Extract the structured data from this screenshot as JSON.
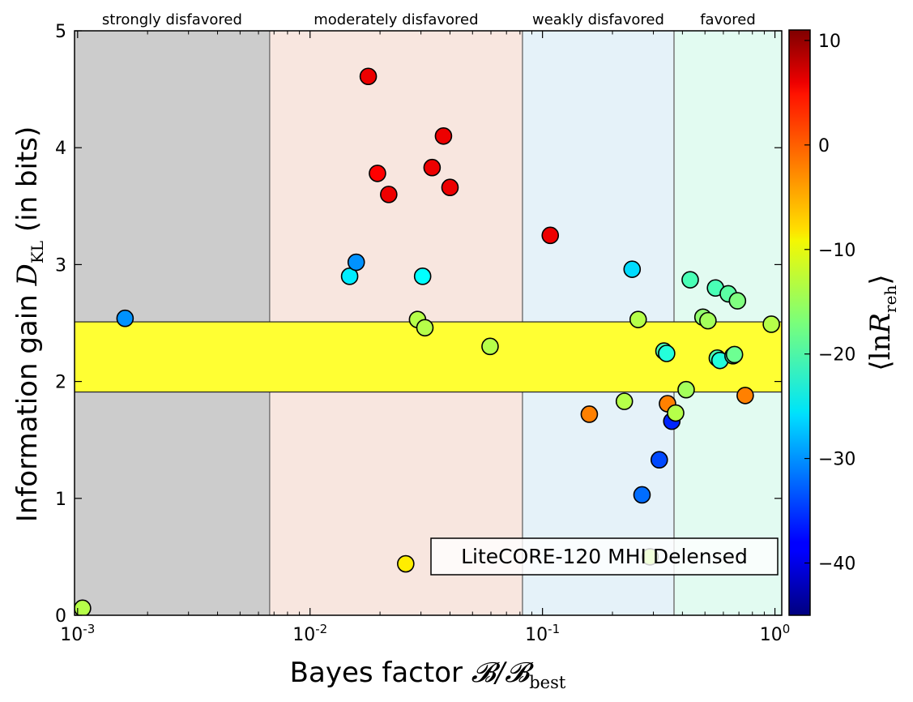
{
  "chart_data": {
    "type": "scatter",
    "xscale": "log",
    "xlim": [
      0.00097,
      1.07
    ],
    "ylim": [
      0,
      5
    ],
    "xlabel": {
      "prefix": "Bayes factor ",
      "math": "𝓑/𝓑",
      "sub": "best"
    },
    "ylabel": {
      "prefix": "Information gain ",
      "math": "D",
      "sub": "KL",
      "suffix": "  (in bits)"
    },
    "x_ticks": [
      {
        "value": 0.001,
        "base": "10",
        "exp": "-3"
      },
      {
        "value": 0.01,
        "base": "10",
        "exp": "-2"
      },
      {
        "value": 0.1,
        "base": "10",
        "exp": "-1"
      },
      {
        "value": 1,
        "base": "10",
        "exp": "0"
      }
    ],
    "y_ticks": [
      "0",
      "1",
      "2",
      "3",
      "4",
      "5"
    ],
    "regions": [
      {
        "label": "strongly disfavored",
        "from": 0.00097,
        "to": 0.0067,
        "color": "#cccccc"
      },
      {
        "label": "moderately disfavored",
        "from": 0.0067,
        "to": 0.082,
        "color": "#f8e6df"
      },
      {
        "label": "weakly disfavored",
        "from": 0.082,
        "to": 0.368,
        "color": "#e5f2f9"
      },
      {
        "label": "favored",
        "from": 0.368,
        "to": 1.07,
        "color": "#e2fbf1"
      }
    ],
    "band": {
      "y_from": 1.91,
      "y_to": 2.51,
      "color": "#ffff33"
    },
    "annotation": "LiteCORE-120 MHI Delensed",
    "colorbar": {
      "label": {
        "open": "⟨",
        "math": "ln",
        "var": "R",
        "sub": "reh",
        "close": "⟩"
      },
      "range": [
        -45,
        11
      ],
      "ticks": [
        "10",
        "0",
        "−10",
        "−20",
        "−30",
        "−40"
      ],
      "tick_values": [
        10,
        0,
        -10,
        -20,
        -30,
        -40
      ],
      "colormap": "jet"
    },
    "points": [
      {
        "x": 0.00105,
        "y": 0.06,
        "c": -14
      },
      {
        "x": 0.0016,
        "y": 2.54,
        "c": -30
      },
      {
        "x": 0.0178,
        "y": 4.61,
        "c": 5
      },
      {
        "x": 0.0195,
        "y": 3.78,
        "c": 4
      },
      {
        "x": 0.0218,
        "y": 3.6,
        "c": 5
      },
      {
        "x": 0.0335,
        "y": 3.83,
        "c": 5
      },
      {
        "x": 0.0375,
        "y": 4.1,
        "c": 5
      },
      {
        "x": 0.04,
        "y": 3.66,
        "c": 5
      },
      {
        "x": 0.0148,
        "y": 2.9,
        "c": -25
      },
      {
        "x": 0.0158,
        "y": 3.02,
        "c": -30
      },
      {
        "x": 0.0305,
        "y": 2.9,
        "c": -24
      },
      {
        "x": 0.029,
        "y": 2.53,
        "c": -14
      },
      {
        "x": 0.0312,
        "y": 2.46,
        "c": -14
      },
      {
        "x": 0.0258,
        "y": 0.44,
        "c": -9
      },
      {
        "x": 0.0595,
        "y": 2.3,
        "c": -14
      },
      {
        "x": 0.108,
        "y": 3.25,
        "c": 5
      },
      {
        "x": 0.159,
        "y": 1.72,
        "c": -3
      },
      {
        "x": 0.225,
        "y": 1.83,
        "c": -14
      },
      {
        "x": 0.243,
        "y": 2.96,
        "c": -26
      },
      {
        "x": 0.258,
        "y": 2.53,
        "c": -14
      },
      {
        "x": 0.268,
        "y": 1.03,
        "c": -32
      },
      {
        "x": 0.29,
        "y": 0.5,
        "c": -14
      },
      {
        "x": 0.318,
        "y": 1.33,
        "c": -34
      },
      {
        "x": 0.333,
        "y": 2.26,
        "c": -20
      },
      {
        "x": 0.342,
        "y": 2.24,
        "c": -22
      },
      {
        "x": 0.345,
        "y": 1.81,
        "c": -3
      },
      {
        "x": 0.36,
        "y": 1.66,
        "c": -36
      },
      {
        "x": 0.374,
        "y": 1.73,
        "c": -14
      },
      {
        "x": 0.415,
        "y": 1.93,
        "c": -15
      },
      {
        "x": 0.432,
        "y": 2.87,
        "c": -20
      },
      {
        "x": 0.49,
        "y": 2.55,
        "c": -16
      },
      {
        "x": 0.515,
        "y": 2.52,
        "c": -15
      },
      {
        "x": 0.555,
        "y": 2.8,
        "c": -20
      },
      {
        "x": 0.565,
        "y": 2.2,
        "c": -20
      },
      {
        "x": 0.58,
        "y": 2.18,
        "c": -22
      },
      {
        "x": 0.63,
        "y": 2.75,
        "c": -19
      },
      {
        "x": 0.66,
        "y": 2.22,
        "c": -20
      },
      {
        "x": 0.67,
        "y": 2.23,
        "c": -18
      },
      {
        "x": 0.69,
        "y": 2.69,
        "c": -17
      },
      {
        "x": 0.745,
        "y": 1.88,
        "c": -3
      },
      {
        "x": 0.965,
        "y": 2.49,
        "c": -14
      }
    ]
  }
}
